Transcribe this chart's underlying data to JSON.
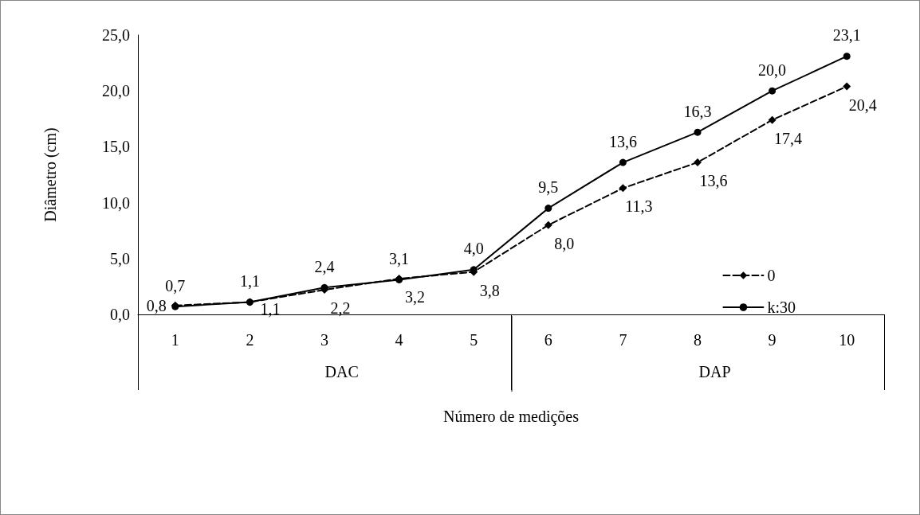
{
  "chart_data": {
    "type": "line",
    "xlabel": "Número de medições",
    "ylabel": "Diâmetro (cm)",
    "categories": [
      "1",
      "2",
      "3",
      "4",
      "5",
      "6",
      "7",
      "8",
      "9",
      "10"
    ],
    "series": [
      {
        "name": "0",
        "color": "#000000",
        "line_style": "dashed",
        "marker": "diamond",
        "values": [
          0.8,
          1.1,
          2.2,
          3.2,
          3.8,
          8.0,
          11.3,
          13.6,
          17.4,
          20.4
        ],
        "value_labels": [
          "0,8",
          "1,1",
          "2,2",
          "3,2",
          "3,8",
          "8,0",
          "11,3",
          "13,6",
          "17,4",
          "20,4"
        ]
      },
      {
        "name": "k:30",
        "color": "#000000",
        "line_style": "solid",
        "marker": "circle",
        "values": [
          0.7,
          1.1,
          2.4,
          3.1,
          4.0,
          9.5,
          13.6,
          16.3,
          20.0,
          23.1
        ],
        "value_labels": [
          "0,7",
          "1,1",
          "2,4",
          "3,1",
          "4,0",
          "9,5",
          "13,6",
          "16,3",
          "20,0",
          "23,1"
        ]
      }
    ],
    "annotations": [
      "DAC",
      "DAP"
    ],
    "ylim": [
      0,
      25
    ],
    "yticks": [
      {
        "value": 0,
        "label": "0,0"
      },
      {
        "value": 5,
        "label": "5,0"
      },
      {
        "value": 10,
        "label": "10,0"
      },
      {
        "value": 15,
        "label": "15,0"
      },
      {
        "value": 20,
        "label": "20,0"
      },
      {
        "value": 25,
        "label": "25,0"
      }
    ],
    "grid": false,
    "legend": "right"
  }
}
